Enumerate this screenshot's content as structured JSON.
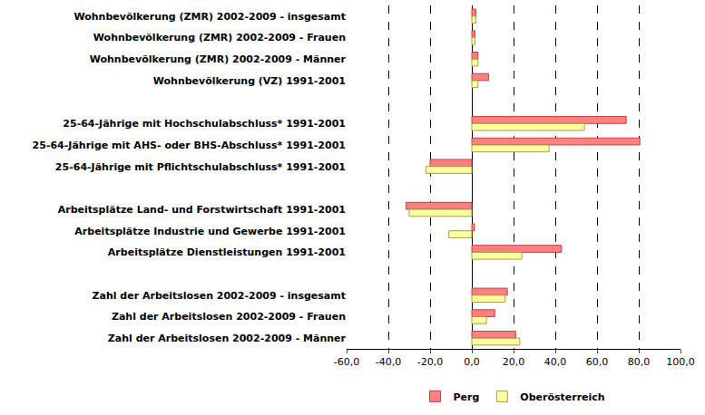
{
  "chart_data": {
    "type": "bar",
    "orientation": "horizontal",
    "categories": [
      "Wohnbevölkerung (ZMR) 2002-2009 - insgesamt",
      "Wohnbevölkerung (ZMR) 2002-2009 - Frauen",
      "Wohnbevölkerung (ZMR) 2002-2009 - Männer",
      "Wohnbevölkerung (VZ) 1991-2001",
      null,
      "25-64-Jährige mit Hochschulabschluss* 1991-2001",
      "25-64-Jährige mit AHS- oder BHS-Abschluss* 1991-2001",
      "25-64-Jährige mit Pflichtschulabschluss* 1991-2001",
      null,
      "Arbeitsplätze Land- und Forstwirtschaft 1991-2001",
      "Arbeitsplätze Industrie und Gewerbe 1991-2001",
      "Arbeitsplätze Dienstleistungen 1991-2001",
      null,
      "Zahl der Arbeitslosen 2002-2009 - insgesamt",
      "Zahl der Arbeitslosen 2002-2009 - Frauen",
      "Zahl der Arbeitslosen 2002-2009 - Männer"
    ],
    "series": [
      {
        "name": "Perg",
        "color": "#ff8080",
        "values": [
          2,
          1.5,
          3,
          8,
          null,
          74,
          80.5,
          -20,
          null,
          -31.5,
          1.3,
          43,
          null,
          17,
          11,
          21
        ]
      },
      {
        "name": "Oberösterreich",
        "color": "#ffffa0",
        "values": [
          2,
          1.5,
          3,
          3,
          null,
          54,
          37,
          -22,
          null,
          -30,
          -11,
          24,
          null,
          16,
          7,
          23
        ]
      }
    ],
    "xlim": [
      -60,
      100
    ],
    "xticks": [
      {
        "value": -60,
        "label": "-60,0"
      },
      {
        "value": -40,
        "label": "-40,0"
      },
      {
        "value": -20,
        "label": "-20,0"
      },
      {
        "value": 0,
        "label": "0,0"
      },
      {
        "value": 20,
        "label": "20,0"
      },
      {
        "value": 40,
        "label": "40,0"
      },
      {
        "value": 60,
        "label": "60,0"
      },
      {
        "value": 80,
        "label": "80,0"
      },
      {
        "value": 100,
        "label": "100,0"
      }
    ],
    "grid": true,
    "legend": "bottom"
  }
}
